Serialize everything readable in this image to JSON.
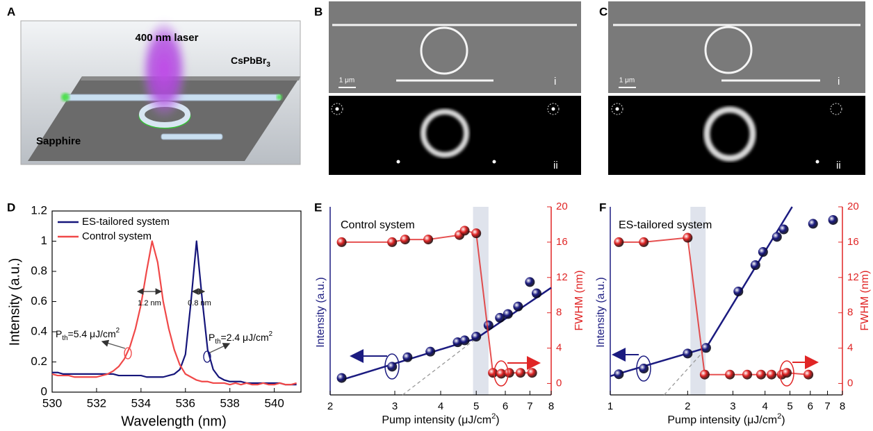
{
  "figure_panels": [
    {
      "letter": "A",
      "laser": "400 nm laser",
      "material": [
        "CsPbBr",
        "3"
      ],
      "substrate": "Sapphire"
    },
    {
      "letter": "B",
      "scale_bar": "1 μm",
      "top": "i",
      "bottom": "ii"
    },
    {
      "letter": "C",
      "scale_bar": "1 μm",
      "top": "i",
      "bottom": "ii"
    }
  ],
  "chart_data": [
    {
      "type": "line",
      "panel_label": "D",
      "xlabel": "Wavelength (nm)",
      "ylabel": "Intensity (a.u.)",
      "xlim": [
        530,
        541.2
      ],
      "xticks": [
        530,
        532,
        534,
        536,
        538,
        540
      ],
      "ylim": [
        0,
        1.2
      ],
      "yticks": [
        0,
        0.2,
        0.4,
        0.6,
        0.8,
        1,
        1.2
      ],
      "x": [
        530,
        530.25,
        530.5,
        530.75,
        531,
        531.25,
        531.5,
        531.75,
        532,
        532.25,
        532.5,
        532.75,
        533,
        533.25,
        533.5,
        533.75,
        534,
        534.25,
        534.5,
        534.75,
        535,
        535.25,
        535.5,
        535.75,
        536,
        536.25,
        536.5,
        536.75,
        537,
        537.25,
        537.5,
        537.75,
        538,
        538.25,
        538.5,
        538.75,
        539,
        539.25,
        539.5,
        539.75,
        540,
        540.25,
        540.5,
        540.75,
        541
      ],
      "series": [
        {
          "name": "ES-tailored system",
          "color": "#15157a",
          "values": [
            0.13,
            0.13,
            0.12,
            0.12,
            0.12,
            0.12,
            0.12,
            0.12,
            0.12,
            0.12,
            0.12,
            0.12,
            0.11,
            0.11,
            0.11,
            0.11,
            0.11,
            0.1,
            0.1,
            0.1,
            0.1,
            0.11,
            0.12,
            0.15,
            0.25,
            0.6,
            1.0,
            0.62,
            0.28,
            0.15,
            0.1,
            0.08,
            0.07,
            0.07,
            0.07,
            0.06,
            0.06,
            0.06,
            0.06,
            0.06,
            0.06,
            0.06,
            0.05,
            0.05,
            0.05
          ]
        },
        {
          "name": "Control system",
          "color": "#f04848",
          "values": [
            0.12,
            0.11,
            0.11,
            0.11,
            0.1,
            0.1,
            0.1,
            0.1,
            0.1,
            0.11,
            0.12,
            0.14,
            0.17,
            0.22,
            0.3,
            0.42,
            0.58,
            0.8,
            1.0,
            0.86,
            0.6,
            0.42,
            0.28,
            0.18,
            0.12,
            0.1,
            0.08,
            0.07,
            0.07,
            0.06,
            0.06,
            0.06,
            0.05,
            0.06,
            0.05,
            0.06,
            0.05,
            0.05,
            0.06,
            0.05,
            0.05,
            0.06,
            0.05,
            0.05,
            0.06
          ]
        }
      ],
      "legend": "upper left",
      "fwhm_labels": [
        "1.2 nm",
        "0.8 nm"
      ],
      "threshold_labels": [
        [
          "P",
          "th",
          "=5.4 μJ/cm",
          "2"
        ],
        [
          "P",
          "th",
          "=2.4 μJ/cm",
          "2"
        ]
      ]
    },
    {
      "type": "scatter",
      "panel_label": "E",
      "inset_label": "Control system",
      "xlabel": [
        "Pump intensity (μJ/cm",
        "2",
        ")"
      ],
      "ylabel": "Intensity (a.u.)",
      "y2label": "FWHM (nm)",
      "xscale": "log",
      "xlim": [
        2,
        8
      ],
      "xticks": [
        2,
        3,
        4,
        5,
        6,
        7,
        8
      ],
      "ylim": [
        0,
        1
      ],
      "y2lim": [
        -1.3,
        20
      ],
      "y2ticks": [
        0,
        4,
        8,
        12,
        16,
        20
      ],
      "shaded_band": [
        4.9,
        5.4
      ],
      "series": [
        {
          "color": "#1b1b80",
          "x": [
            2.15,
            2.95,
            3.25,
            3.75,
            4.45,
            4.65,
            5.0,
            5.4,
            5.8,
            6.1,
            6.5,
            7.0,
            7.3
          ],
          "values": [
            0.09,
            0.15,
            0.2,
            0.23,
            0.28,
            0.29,
            0.31,
            0.37,
            0.41,
            0.43,
            0.47,
            0.6,
            0.54
          ]
        },
        {
          "color": "#e02525",
          "axis": "y2",
          "connect": true,
          "x": [
            2.15,
            2.95,
            3.2,
            3.7,
            4.5,
            4.65,
            5.0,
            5.55,
            5.85,
            6.15,
            6.6,
            7.1
          ],
          "values": [
            16,
            16,
            16.3,
            16.3,
            16.8,
            17.3,
            17,
            1.2,
            1.1,
            1.2,
            1.2,
            1.2
          ]
        }
      ],
      "fits": [
        {
          "color": "#1b1b80",
          "x": [
            2.15,
            5.0,
            8
          ],
          "values": [
            0.08,
            0.3,
            0.57
          ]
        },
        {
          "color": "#999999",
          "dashed": true,
          "x": [
            3.15,
            5.0
          ],
          "values": [
            0,
            0.3
          ]
        }
      ]
    },
    {
      "type": "scatter",
      "panel_label": "F",
      "inset_label": "ES-tailored system",
      "xlabel": [
        "Pump intensity (μJ/cm",
        "2",
        ")"
      ],
      "ylabel": "Intensity (a.u.)",
      "y2label": "FWHM (nm)",
      "xscale": "log",
      "xlim": [
        1,
        8
      ],
      "xticks": [
        1,
        2,
        3,
        4,
        5,
        6,
        7,
        8
      ],
      "ylim": [
        0,
        1
      ],
      "y2lim": [
        -1.3,
        20
      ],
      "y2ticks": [
        0,
        4,
        8,
        12,
        16,
        20
      ],
      "shaded_band": [
        2.05,
        2.35
      ],
      "series": [
        {
          "color": "#1b1b80",
          "x": [
            1.08,
            1.35,
            2.0,
            2.36,
            3.15,
            3.67,
            3.93,
            4.45,
            4.73,
            6.15,
            7.36
          ],
          "values": [
            0.11,
            0.14,
            0.22,
            0.25,
            0.55,
            0.69,
            0.76,
            0.84,
            0.88,
            0.91,
            0.93
          ]
        },
        {
          "color": "#e02525",
          "axis": "y2",
          "connect": true,
          "x": [
            1.08,
            1.35,
            2.0,
            2.33,
            2.92,
            3.41,
            3.86,
            4.24,
            4.65,
            4.86,
            5.9
          ],
          "values": [
            16,
            16,
            16.5,
            1,
            1,
            1,
            1,
            1,
            1,
            1.2,
            1
          ]
        }
      ],
      "fits": [
        {
          "color": "#1b1b80",
          "x": [
            1.0,
            2.36,
            5.1
          ],
          "values": [
            0.1,
            0.25,
            1.0
          ]
        },
        {
          "color": "#999999",
          "dashed": true,
          "x": [
            1.62,
            2.3
          ],
          "values": [
            0,
            0.23
          ]
        }
      ]
    }
  ]
}
